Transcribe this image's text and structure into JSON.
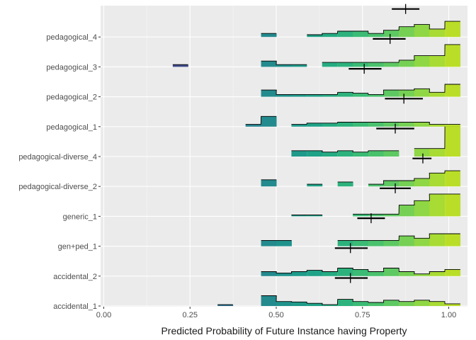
{
  "chart_data": {
    "type": "ridgeline-histogram",
    "title": "",
    "xlabel": "Predicted Probability of Future Instance having Property",
    "ylabel": "",
    "xlim": [
      -0.005,
      1.055
    ],
    "x_ticks": [
      0.0,
      0.25,
      0.5,
      0.75,
      1.0
    ],
    "x_tick_labels": [
      "0.00",
      "0.25",
      "0.50",
      "0.75",
      "1.00"
    ],
    "grid": true,
    "legend": "none",
    "bin_width": 0.0444,
    "bins_left_edges": [
      0.2,
      0.244,
      0.289,
      0.333,
      0.378,
      0.411,
      0.456,
      0.5,
      0.544,
      0.589,
      0.633,
      0.678,
      0.722,
      0.767,
      0.811,
      0.856,
      0.9,
      0.944,
      0.989
    ],
    "fill_colors": [
      "#3e4a89",
      "#3b528b",
      "#33638d",
      "#2c728e",
      "#287d8e",
      "#26828e",
      "#238a8d",
      "#20928c",
      "#1f9a8a",
      "#1fa287",
      "#25ab82",
      "#2db27d",
      "#3bbb75",
      "#4ac16d",
      "#5ec962",
      "#75d054",
      "#8fd744",
      "#a8db34",
      "#bade28"
    ],
    "condition_labels": [
      "accidental_1",
      "accidental_2",
      "gen+ped_1",
      "generic_1",
      "pedagogical-diverse_2",
      "pedagogical-diverse_4",
      "pedagogical_1",
      "pedagogical_2",
      "pedagogical_3",
      "pedagogical_4"
    ],
    "conditions": [
      {
        "name": "accidental_1",
        "mean": 0.715,
        "ci": [
          0.67,
          0.765
        ],
        "bins": [
          {
            "left": 0.33,
            "h": 0.03
          },
          {
            "left": 0.456,
            "h": 0.23
          },
          {
            "left": 0.5,
            "h": 0.1
          },
          {
            "left": 0.544,
            "h": 0.09
          },
          {
            "left": 0.589,
            "h": 0.06
          },
          {
            "left": 0.633,
            "h": 0.03
          },
          {
            "left": 0.678,
            "h": 0.15
          },
          {
            "left": 0.722,
            "h": 0.1
          },
          {
            "left": 0.767,
            "h": 0.08
          },
          {
            "left": 0.811,
            "h": 0.13
          },
          {
            "left": 0.856,
            "h": 0.1
          },
          {
            "left": 0.9,
            "h": 0.13
          },
          {
            "left": 0.944,
            "h": 0.1
          },
          {
            "left": 0.989,
            "h": 0.05
          }
        ]
      },
      {
        "name": "accidental_2",
        "mean": 0.715,
        "ci": [
          0.67,
          0.765
        ],
        "bins": [
          {
            "left": 0.456,
            "h": 0.1
          },
          {
            "left": 0.5,
            "h": 0.07
          },
          {
            "left": 0.544,
            "h": 0.1
          },
          {
            "left": 0.589,
            "h": 0.13
          },
          {
            "left": 0.633,
            "h": 0.1
          },
          {
            "left": 0.678,
            "h": 0.18
          },
          {
            "left": 0.722,
            "h": 0.15
          },
          {
            "left": 0.767,
            "h": 0.1
          },
          {
            "left": 0.811,
            "h": 0.18
          },
          {
            "left": 0.856,
            "h": 0.1
          },
          {
            "left": 0.9,
            "h": 0.05
          },
          {
            "left": 0.944,
            "h": 0.1
          },
          {
            "left": 0.989,
            "h": 0.15
          }
        ]
      },
      {
        "name": "gen+ped_1",
        "mean": 0.775,
        "ci": [
          0.735,
          0.815
        ],
        "bins": [
          {
            "left": 0.456,
            "h": 0.13
          },
          {
            "left": 0.5,
            "h": 0.13
          },
          {
            "left": 0.678,
            "h": 0.13
          },
          {
            "left": 0.722,
            "h": 0.13
          },
          {
            "left": 0.767,
            "h": 0.13
          },
          {
            "left": 0.811,
            "h": 0.13
          },
          {
            "left": 0.856,
            "h": 0.23
          },
          {
            "left": 0.9,
            "h": 0.18
          },
          {
            "left": 0.944,
            "h": 0.28
          },
          {
            "left": 0.989,
            "h": 0.28
          }
        ]
      },
      {
        "name": "generic_1",
        "mean": 0.845,
        "ci": [
          0.8,
          0.89
        ],
        "bins": [
          {
            "left": 0.544,
            "h": 0.03
          },
          {
            "left": 0.589,
            "h": 0.03
          },
          {
            "left": 0.722,
            "h": 0.05
          },
          {
            "left": 0.767,
            "h": 0.05
          },
          {
            "left": 0.811,
            "h": 0.05
          },
          {
            "left": 0.856,
            "h": 0.25
          },
          {
            "left": 0.9,
            "h": 0.35
          },
          {
            "left": 0.944,
            "h": 0.5
          },
          {
            "left": 0.989,
            "h": 0.5
          }
        ]
      },
      {
        "name": "pedagogical-diverse_2",
        "mean": 0.925,
        "ci": [
          0.895,
          0.95
        ],
        "bins": [
          {
            "left": 0.456,
            "h": 0.15
          },
          {
            "left": 0.589,
            "h": 0.05
          },
          {
            "left": 0.678,
            "h": 0.1
          },
          {
            "left": 0.767,
            "h": 0.05
          },
          {
            "left": 0.811,
            "h": 0.13
          },
          {
            "left": 0.856,
            "h": 0.13
          },
          {
            "left": 0.9,
            "h": 0.18
          },
          {
            "left": 0.944,
            "h": 0.3
          },
          {
            "left": 0.989,
            "h": 0.35
          }
        ]
      },
      {
        "name": "pedagogical-diverse_4",
        "mean": 0.845,
        "ci": [
          0.79,
          0.9
        ],
        "bins": [
          {
            "left": 0.544,
            "h": 0.13
          },
          {
            "left": 0.589,
            "h": 0.13
          },
          {
            "left": 0.633,
            "h": 0.1
          },
          {
            "left": 0.678,
            "h": 0.13
          },
          {
            "left": 0.722,
            "h": 0.1
          },
          {
            "left": 0.767,
            "h": 0.13
          },
          {
            "left": 0.811,
            "h": 0.13
          },
          {
            "left": 0.9,
            "h": 0.18
          },
          {
            "left": 0.944,
            "h": 0.18
          },
          {
            "left": 0.989,
            "h": 0.68
          }
        ]
      },
      {
        "name": "pedagogical_1",
        "mean": 0.87,
        "ci": [
          0.815,
          0.925
        ],
        "bins": [
          {
            "left": 0.411,
            "h": 0.05
          },
          {
            "left": 0.456,
            "h": 0.23
          },
          {
            "left": 0.544,
            "h": 0.05
          },
          {
            "left": 0.589,
            "h": 0.08
          },
          {
            "left": 0.633,
            "h": 0.08
          },
          {
            "left": 0.678,
            "h": 0.1
          },
          {
            "left": 0.722,
            "h": 0.1
          },
          {
            "left": 0.767,
            "h": 0.1
          },
          {
            "left": 0.811,
            "h": 0.1
          },
          {
            "left": 0.856,
            "h": 0.1
          },
          {
            "left": 0.9,
            "h": 0.1
          },
          {
            "left": 0.944,
            "h": 0.05
          },
          {
            "left": 0.989,
            "h": 0.05
          }
        ]
      },
      {
        "name": "pedagogical_2",
        "mean": 0.755,
        "ci": [
          0.71,
          0.805
        ],
        "bins": [
          {
            "left": 0.456,
            "h": 0.15
          },
          {
            "left": 0.5,
            "h": 0.05
          },
          {
            "left": 0.544,
            "h": 0.05
          },
          {
            "left": 0.589,
            "h": 0.05
          },
          {
            "left": 0.633,
            "h": 0.05
          },
          {
            "left": 0.678,
            "h": 0.1
          },
          {
            "left": 0.722,
            "h": 0.08
          },
          {
            "left": 0.767,
            "h": 0.05
          },
          {
            "left": 0.811,
            "h": 0.15
          },
          {
            "left": 0.856,
            "h": 0.15
          },
          {
            "left": 0.9,
            "h": 0.18
          },
          {
            "left": 0.944,
            "h": 0.1
          },
          {
            "left": 0.989,
            "h": 0.28
          }
        ]
      },
      {
        "name": "pedagogical_3",
        "mean": 0.83,
        "ci": [
          0.78,
          0.875
        ],
        "bins": [
          {
            "left": 0.2,
            "h": 0.05
          },
          {
            "left": 0.456,
            "h": 0.13
          },
          {
            "left": 0.5,
            "h": 0.05
          },
          {
            "left": 0.544,
            "h": 0.05
          },
          {
            "left": 0.633,
            "h": 0.1
          },
          {
            "left": 0.678,
            "h": 0.1
          },
          {
            "left": 0.722,
            "h": 0.1
          },
          {
            "left": 0.767,
            "h": 0.1
          },
          {
            "left": 0.811,
            "h": 0.1
          },
          {
            "left": 0.856,
            "h": 0.15
          },
          {
            "left": 0.9,
            "h": 0.25
          },
          {
            "left": 0.944,
            "h": 0.25
          },
          {
            "left": 0.989,
            "h": 0.5
          }
        ]
      },
      {
        "name": "pedagogical_4",
        "mean": 0.875,
        "ci": [
          0.835,
          0.915
        ],
        "bins": [
          {
            "left": 0.456,
            "h": 0.08
          },
          {
            "left": 0.589,
            "h": 0.05
          },
          {
            "left": 0.633,
            "h": 0.08
          },
          {
            "left": 0.678,
            "h": 0.13
          },
          {
            "left": 0.722,
            "h": 0.13
          },
          {
            "left": 0.767,
            "h": 0.08
          },
          {
            "left": 0.811,
            "h": 0.15
          },
          {
            "left": 0.856,
            "h": 0.23
          },
          {
            "left": 0.9,
            "h": 0.28
          },
          {
            "left": 0.944,
            "h": 0.18
          },
          {
            "left": 0.989,
            "h": 0.35
          }
        ]
      }
    ]
  }
}
